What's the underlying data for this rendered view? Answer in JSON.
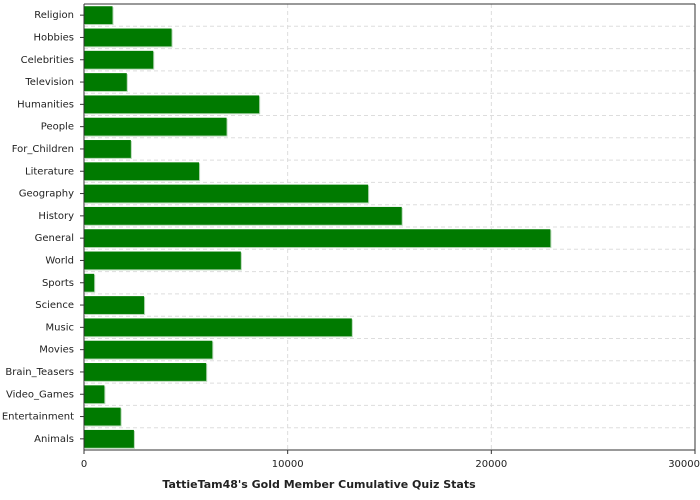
{
  "chart_data": {
    "type": "barh",
    "x_label": "TattieTam48's Gold Member Cumulative Quiz Stats",
    "categories": [
      "Religion",
      "Hobbies",
      "Celebrities",
      "Television",
      "Humanities",
      "People",
      "For_Children",
      "Literature",
      "Geography",
      "History",
      "General",
      "World",
      "Sports",
      "Science",
      "Music",
      "Movies",
      "Brain_Teasers",
      "Video_Games",
      "Entertainment",
      "Animals"
    ],
    "values": [
      1400,
      4300,
      3400,
      2100,
      8600,
      7000,
      2300,
      5650,
      13950,
      15600,
      22900,
      7700,
      500,
      2950,
      13150,
      6300,
      6000,
      1000,
      1800,
      2450
    ],
    "color": "#007a00",
    "xlim": [
      0,
      30000
    ],
    "xticks": [
      0,
      10000,
      20000,
      30000
    ],
    "grid": true
  }
}
